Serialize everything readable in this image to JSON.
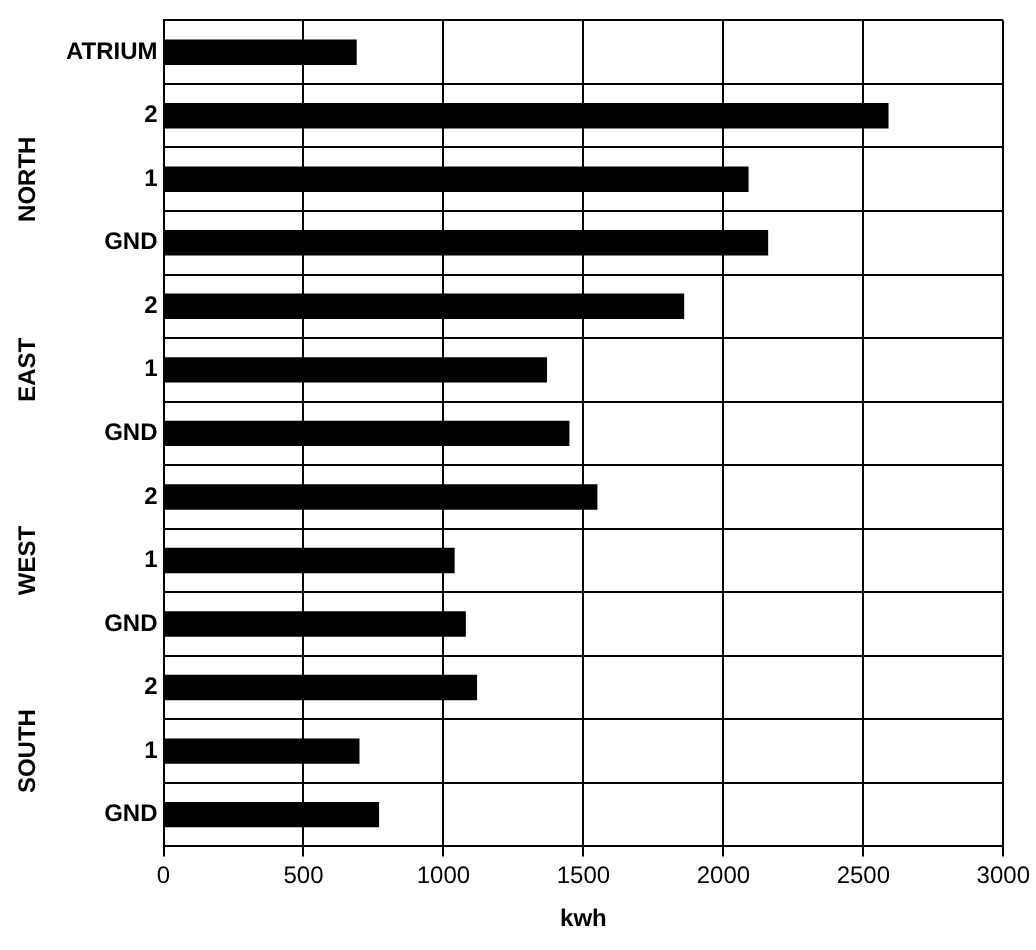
{
  "chart_data": {
    "type": "bar",
    "orientation": "horizontal",
    "xlabel": "kwh",
    "categories": [
      "ATRIUM",
      "2",
      "1",
      "GND",
      "2",
      "1",
      "GND",
      "2",
      "1",
      "GND",
      "2",
      "1",
      "GND"
    ],
    "values": [
      690,
      2590,
      2090,
      2160,
      1860,
      1370,
      1450,
      1550,
      1040,
      1080,
      1120,
      700,
      770
    ],
    "color": "#000000",
    "xlim": [
      0,
      3000
    ],
    "xticks": [
      0,
      500,
      1000,
      1500,
      2000,
      2500,
      3000
    ],
    "grid": true,
    "legend": false,
    "annotations": [
      "NORTH",
      "EAST",
      "WEST",
      "SOUTH"
    ]
  }
}
